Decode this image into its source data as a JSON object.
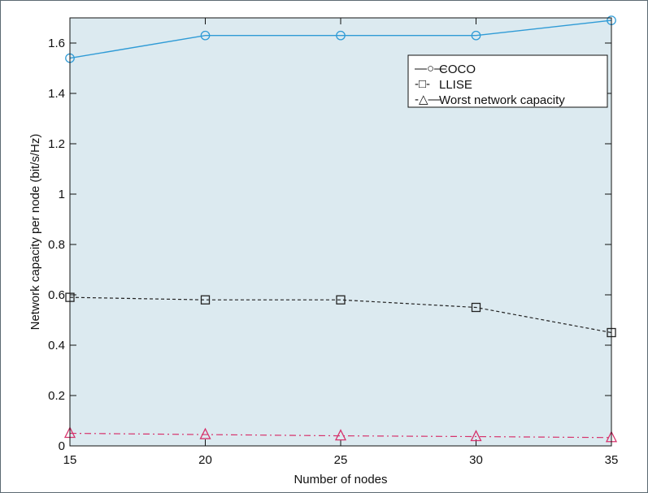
{
  "chart_data": {
    "type": "line",
    "title": "",
    "xlabel": "Number of nodes",
    "ylabel": "Network capacity per node (bit/s/Hz)",
    "xlim": [
      15,
      35
    ],
    "ylim": [
      0,
      1.7
    ],
    "xticks": [
      15,
      20,
      25,
      30,
      35
    ],
    "xtick_labels": [
      "15",
      "20",
      "25",
      "30",
      "35"
    ],
    "yticks": [
      0,
      0.2,
      0.4,
      0.6,
      0.8,
      1.0,
      1.2,
      1.4,
      1.6
    ],
    "ytick_labels": [
      "0",
      "0.2",
      "0.4",
      "0.6",
      "0.8",
      "1",
      "1.2",
      "1.4",
      "1.6"
    ],
    "grid": false,
    "legend_position": "top-right",
    "x": [
      15,
      20,
      25,
      30,
      35
    ],
    "series": [
      {
        "name": "COCO",
        "values": [
          1.54,
          1.63,
          1.63,
          1.63,
          1.69
        ],
        "color": "#2f9bd6",
        "marker": "circle",
        "line_style": "solid",
        "legend_symbol": "—○—"
      },
      {
        "name": "LLISE",
        "values": [
          0.59,
          0.58,
          0.58,
          0.55,
          0.45
        ],
        "color": "#222222",
        "marker": "square",
        "line_style": "dashed",
        "legend_symbol": "-□-"
      },
      {
        "name": "Worst network capacity",
        "values": [
          0.05,
          0.045,
          0.04,
          0.037,
          0.033
        ],
        "color": "#d6336c",
        "marker": "triangle",
        "line_style": "dashdot",
        "legend_symbol": "-△—"
      }
    ],
    "colors": {
      "frame_border": "#5c6a73",
      "plot_background": "#dceaf0",
      "axis": "#111111"
    }
  }
}
